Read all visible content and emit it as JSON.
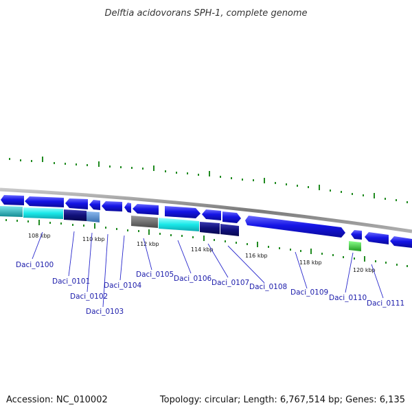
{
  "title": "Delftia acidovorans SPH-1, complete genome",
  "footer": {
    "accession": "Accession: NC_010002",
    "summary": "Topology: circular; Length: 6,767,514 bp; Genes: 6,135"
  },
  "colors": {
    "backbone": "#8a8a8a",
    "forward_gene": "#1515e6",
    "reverse_gene": "#1515e6",
    "cyan": "#19e8e8",
    "navy": "#10107a",
    "steel": "#4a86c8",
    "teal": "#1aa0a8",
    "gray_gene": "#6a6a6a",
    "green_gene": "#33c833",
    "tick_green": "#1f8a1f",
    "label_line": "#2525cc"
  },
  "genes": [
    {
      "id": "gene-1",
      "color": "blue",
      "strand": "reverse"
    },
    {
      "id": "gene-2",
      "color": "blue",
      "strand": "reverse"
    },
    {
      "id": "gene-3",
      "color": "blue",
      "strand": "reverse"
    },
    {
      "id": "gene-4",
      "color": "blue",
      "strand": "reverse"
    },
    {
      "id": "gene-5",
      "color": "blue",
      "strand": "reverse"
    },
    {
      "id": "gene-6",
      "color": "blue",
      "strand": "reverse"
    },
    {
      "id": "gene-7",
      "color": "blue",
      "strand": "reverse"
    },
    {
      "id": "gene-8",
      "color": "blue",
      "strand": "forward"
    },
    {
      "id": "gene-9",
      "color": "blue",
      "strand": "reverse"
    },
    {
      "id": "gene-10",
      "color": "blue",
      "strand": "forward"
    },
    {
      "id": "gene-11",
      "color": "blue",
      "strand": "forward"
    },
    {
      "id": "gene-12",
      "color": "blue",
      "strand": "reverse"
    },
    {
      "id": "gene-13",
      "color": "blue",
      "strand": "reverse"
    }
  ],
  "features": [
    {
      "id": "teal-bar",
      "color": "teal"
    },
    {
      "id": "cyan-bar-1",
      "color": "cyan"
    },
    {
      "id": "navy-bar-1",
      "color": "navy"
    },
    {
      "id": "steel-bar",
      "color": "steel"
    },
    {
      "id": "gray-bar",
      "color": "gray"
    },
    {
      "id": "cyan-bar-2",
      "color": "cyan"
    },
    {
      "id": "navy-bar-2",
      "color": "navy"
    },
    {
      "id": "navy-bar-3",
      "color": "navy"
    },
    {
      "id": "green-box",
      "color": "green"
    }
  ],
  "gene_labels": [
    "Daci_0100",
    "Daci_0101",
    "Daci_0102",
    "Daci_0103",
    "Daci_0104",
    "Daci_0105",
    "Daci_0106",
    "Daci_0107",
    "Daci_0108",
    "Daci_0109",
    "Daci_0110",
    "Daci_0111"
  ],
  "scale_labels": [
    "108 kbp",
    "110 kbp",
    "112 kbp",
    "114 kbp",
    "116 kbp",
    "118 kbp",
    "120 kbp"
  ]
}
